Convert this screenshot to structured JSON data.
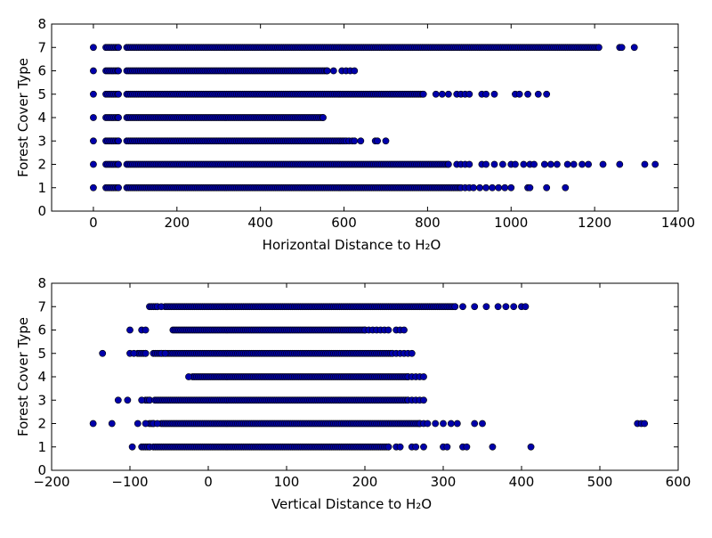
{
  "chart_data": [
    {
      "type": "scatter",
      "xlabel": "Horizontal Distance to H₂O",
      "ylabel": "Forest Cover Type",
      "xlim": [
        -100,
        1400
      ],
      "ylim": [
        0,
        8
      ],
      "xticks": [
        0,
        200,
        400,
        600,
        800,
        1000,
        1200,
        1400
      ],
      "yticks": [
        0,
        1,
        2,
        3,
        4,
        5,
        6,
        7,
        8
      ],
      "marker_color": "#0000aa",
      "series": [
        {
          "type_value": 1,
          "dense_ranges": [
            [
              0,
              0
            ],
            [
              30,
              60
            ],
            [
              80,
              880
            ]
          ],
          "outliers": [
            890,
            900,
            910,
            925,
            940,
            955,
            970,
            985,
            1000,
            1040,
            1045,
            1085,
            1130
          ]
        },
        {
          "type_value": 2,
          "dense_ranges": [
            [
              0,
              0
            ],
            [
              30,
              60
            ],
            [
              80,
              850
            ]
          ],
          "outliers": [
            870,
            880,
            890,
            900,
            930,
            940,
            960,
            980,
            1000,
            1010,
            1030,
            1045,
            1055,
            1080,
            1095,
            1110,
            1135,
            1150,
            1170,
            1185,
            1220,
            1260,
            1320,
            1345
          ]
        },
        {
          "type_value": 3,
          "dense_ranges": [
            [
              0,
              0
            ],
            [
              30,
              60
            ],
            [
              80,
              600
            ]
          ],
          "outliers": [
            605,
            612,
            620,
            625,
            640,
            675,
            680,
            700
          ]
        },
        {
          "type_value": 4,
          "dense_ranges": [
            [
              0,
              0
            ],
            [
              30,
              60
            ],
            [
              80,
              550
            ]
          ],
          "outliers": []
        },
        {
          "type_value": 5,
          "dense_ranges": [
            [
              0,
              0
            ],
            [
              30,
              60
            ],
            [
              80,
              790
            ]
          ],
          "outliers": [
            820,
            835,
            850,
            870,
            880,
            890,
            900,
            930,
            940,
            960,
            1010,
            1020,
            1040,
            1065,
            1085
          ]
        },
        {
          "type_value": 6,
          "dense_ranges": [
            [
              0,
              0
            ],
            [
              30,
              60
            ],
            [
              80,
              560
            ]
          ],
          "outliers": [
            575,
            595,
            605,
            615,
            625
          ]
        },
        {
          "type_value": 7,
          "dense_ranges": [
            [
              0,
              0
            ],
            [
              30,
              60
            ],
            [
              80,
              1210
            ]
          ],
          "outliers": [
            1260,
            1265,
            1295
          ]
        }
      ]
    },
    {
      "type": "scatter",
      "xlabel": "Vertical Distance to H₂O",
      "ylabel": "Forest Cover Type",
      "xlim": [
        -200,
        600
      ],
      "ylim": [
        0,
        8
      ],
      "xticks": [
        -200,
        -100,
        0,
        100,
        200,
        300,
        400,
        500,
        600
      ],
      "yticks": [
        0,
        1,
        2,
        3,
        4,
        5,
        6,
        7,
        8
      ],
      "marker_color": "#0000aa",
      "series": [
        {
          "type_value": 1,
          "dense_ranges": [
            [
              -85,
              -75
            ],
            [
              -70,
              230
            ]
          ],
          "outliers": [
            -97,
            240,
            245,
            260,
            265,
            275,
            300,
            305,
            325,
            330,
            363,
            412
          ]
        },
        {
          "type_value": 2,
          "dense_ranges": [
            [
              -75,
              -70
            ],
            [
              -60,
              270
            ]
          ],
          "outliers": [
            -147,
            -123,
            -90,
            -80,
            -65,
            275,
            280,
            290,
            300,
            310,
            318,
            340,
            350,
            548,
            553,
            557
          ]
        },
        {
          "type_value": 3,
          "dense_ranges": [
            [
              -80,
              -75
            ],
            [
              -68,
              255
            ]
          ],
          "outliers": [
            -115,
            -103,
            -85,
            260,
            265,
            270,
            275
          ]
        },
        {
          "type_value": 4,
          "dense_ranges": [
            [
              -20,
              255
            ]
          ],
          "outliers": [
            -25,
            260,
            265,
            270,
            275
          ]
        },
        {
          "type_value": 5,
          "dense_ranges": [
            [
              -90,
              -80
            ],
            [
              -70,
              235
            ]
          ],
          "outliers": [
            -135,
            -100,
            -95,
            -60,
            -55,
            240,
            245,
            250,
            255,
            260
          ]
        },
        {
          "type_value": 6,
          "dense_ranges": [
            [
              -45,
              200
            ]
          ],
          "outliers": [
            -100,
            -85,
            -80,
            205,
            210,
            215,
            220,
            225,
            230,
            240,
            245,
            250
          ]
        },
        {
          "type_value": 7,
          "dense_ranges": [
            [
              -75,
              -65
            ],
            [
              -55,
              315
            ]
          ],
          "outliers": [
            -60,
            325,
            340,
            355,
            370,
            380,
            390,
            400,
            405
          ]
        }
      ]
    }
  ]
}
